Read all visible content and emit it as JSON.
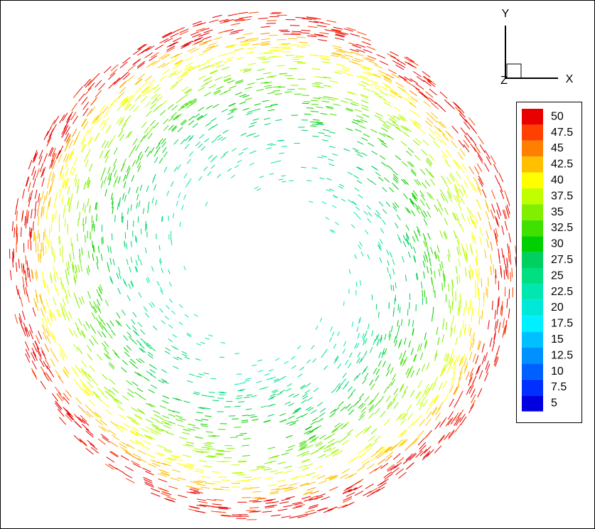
{
  "triad": {
    "y": "Y",
    "x": "X",
    "z": "Z"
  },
  "legend": {
    "levels": [
      50,
      47.5,
      45,
      42.5,
      40,
      37.5,
      35,
      32.5,
      30,
      27.5,
      25,
      22.5,
      20,
      17.5,
      15,
      12.5,
      10,
      7.5,
      5
    ],
    "colors": [
      "#e80000",
      "#ff4000",
      "#ff8000",
      "#ffc000",
      "#ffff00",
      "#c0ff00",
      "#80f000",
      "#40e000",
      "#00d000",
      "#00d060",
      "#00e080",
      "#00e8b0",
      "#00e8d8",
      "#00f0ff",
      "#00c0ff",
      "#0090ff",
      "#0060ff",
      "#0030ff",
      "#0000e0"
    ]
  }
}
